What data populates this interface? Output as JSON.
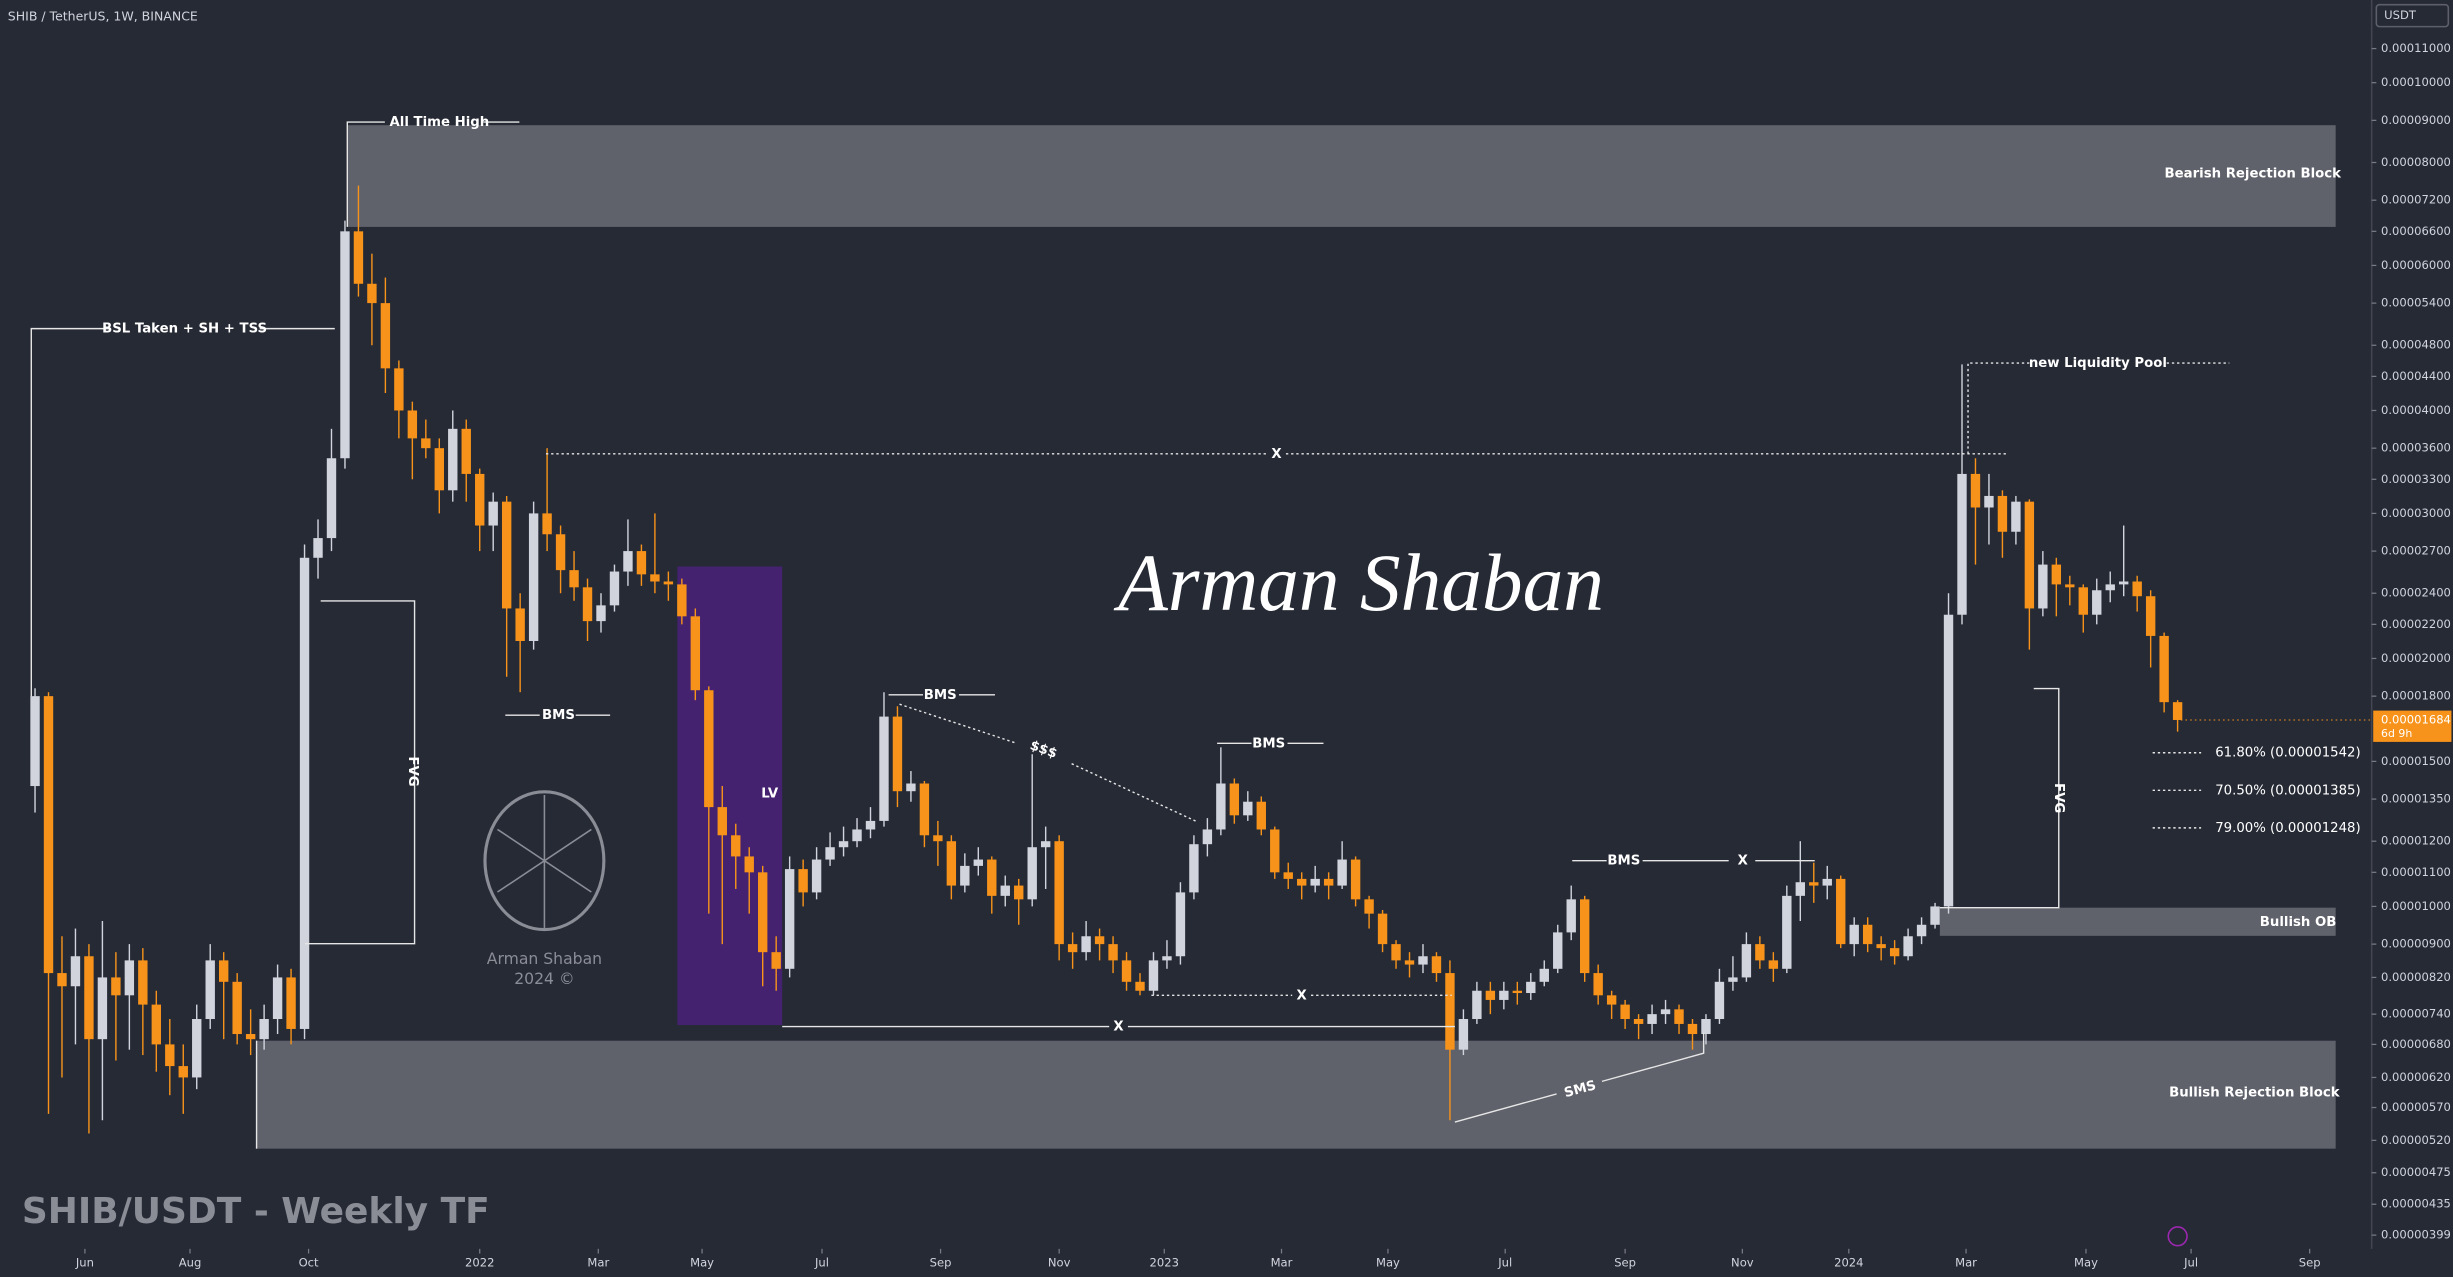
{
  "chart_data": {
    "type": "candlestick",
    "title": "SHIB / TetherUS, 1W, BINANCE",
    "subtitle": "SHIB/USDT - Weekly TF",
    "signature": "Arman Shaban",
    "logo_text": [
      "Arman Shaban",
      "2024 ©"
    ],
    "currency": "USDT",
    "log_scale": true,
    "up_color": "#d1d4dc",
    "down_color": "#f7931a",
    "last_price": {
      "value": 1.684e-05,
      "label": "0.00001684"
    },
    "countdown": "6d 9h",
    "annotations": {
      "ath": "All Time High",
      "bearish_block": "Bearish Rejection Block",
      "bsl": "BSL Taken + SH + TSS",
      "fvg": [
        "FVG",
        "FVG"
      ],
      "bms": [
        "BMS",
        "BMS",
        "BMS",
        "BMS"
      ],
      "x": [
        "X",
        "X",
        "X",
        "X"
      ],
      "dollars": "$$$",
      "lv": "LV",
      "sms": "SMS",
      "liquidity": "new Liquidity Pool",
      "bullish_ob": "Bullish OB",
      "bullish_block": "Bullish Rejection Block",
      "fib": [
        "61.80% (0.00001542)",
        "70.50% (0.00001385)",
        "79.00% (0.00001248)"
      ]
    },
    "xlim": [
      -2.6,
      173.4
    ],
    "xticks": [
      {
        "value": 3.7,
        "label": "Jun"
      },
      {
        "value": 11.5,
        "label": "Aug"
      },
      {
        "value": 20.3,
        "label": "Oct"
      },
      {
        "value": 33,
        "label": "2022"
      },
      {
        "value": 41.8,
        "label": "Mar"
      },
      {
        "value": 49.5,
        "label": "May"
      },
      {
        "value": 58.4,
        "label": "Jul"
      },
      {
        "value": 67.2,
        "label": "Sep"
      },
      {
        "value": 76,
        "label": "Nov"
      },
      {
        "value": 83.8,
        "label": "2023"
      },
      {
        "value": 92.5,
        "label": "Mar"
      },
      {
        "value": 100.4,
        "label": "May"
      },
      {
        "value": 109.1,
        "label": "Jul"
      },
      {
        "value": 118,
        "label": "Sep"
      },
      {
        "value": 126.7,
        "label": "Nov"
      },
      {
        "value": 134.6,
        "label": "2024"
      },
      {
        "value": 143.3,
        "label": "Mar"
      },
      {
        "value": 152.2,
        "label": "May"
      },
      {
        "value": 160,
        "label": "Jul"
      },
      {
        "value": 168.8,
        "label": "Sep"
      }
    ],
    "ylim": [
      3.84e-06,
      0.000126
    ],
    "yticks": [
      {
        "value": 0.00011,
        "label": "0.00011000"
      },
      {
        "value": 0.0001,
        "label": "0.00010000"
      },
      {
        "value": 9e-05,
        "label": "0.00009000"
      },
      {
        "value": 8e-05,
        "label": "0.00008000"
      },
      {
        "value": 7.2e-05,
        "label": "0.00007200"
      },
      {
        "value": 6.6e-05,
        "label": "0.00006600"
      },
      {
        "value": 6e-05,
        "label": "0.00006000"
      },
      {
        "value": 5.4e-05,
        "label": "0.00005400"
      },
      {
        "value": 4.8e-05,
        "label": "0.00004800"
      },
      {
        "value": 4.4e-05,
        "label": "0.00004400"
      },
      {
        "value": 4e-05,
        "label": "0.00004000"
      },
      {
        "value": 3.6e-05,
        "label": "0.00003600"
      },
      {
        "value": 3.3e-05,
        "label": "0.00003300"
      },
      {
        "value": 3e-05,
        "label": "0.00003000"
      },
      {
        "value": 2.7e-05,
        "label": "0.00002700"
      },
      {
        "value": 2.4e-05,
        "label": "0.00002400"
      },
      {
        "value": 2.2e-05,
        "label": "0.00002200"
      },
      {
        "value": 2e-05,
        "label": "0.00002000"
      },
      {
        "value": 1.8e-05,
        "label": "0.00001800"
      },
      {
        "value": 1.5e-05,
        "label": "0.00001500"
      },
      {
        "value": 1.35e-05,
        "label": "0.00001350"
      },
      {
        "value": 1.2e-05,
        "label": "0.00001200"
      },
      {
        "value": 1.1e-05,
        "label": "0.00001100"
      },
      {
        "value": 1e-05,
        "label": "0.00001000"
      },
      {
        "value": 9e-06,
        "label": "0.00000900"
      },
      {
        "value": 8.2e-06,
        "label": "0.00000820"
      },
      {
        "value": 7.4e-06,
        "label": "0.00000740"
      },
      {
        "value": 6.8e-06,
        "label": "0.00000680"
      },
      {
        "value": 6.2e-06,
        "label": "0.00000620"
      },
      {
        "value": 5.7e-06,
        "label": "0.00000570"
      },
      {
        "value": 5.2e-06,
        "label": "0.00000520"
      },
      {
        "value": 4.75e-06,
        "label": "0.00000475"
      },
      {
        "value": 4.35e-06,
        "label": "0.00000435"
      },
      {
        "value": 3.99e-06,
        "label": "0.00000399"
      }
    ],
    "open": [
      1.4e-05,
      1.8e-05,
      8.3e-06,
      8e-06,
      8.7e-06,
      6.9e-06,
      8.2e-06,
      7.8e-06,
      8.6e-06,
      7.6e-06,
      6.8e-06,
      6.4e-06,
      6.2e-06,
      7.3e-06,
      8.6e-06,
      8.1e-06,
      7e-06,
      6.9e-06,
      7.3e-06,
      8.2e-06,
      7.1e-06,
      2.65e-05,
      2.8e-05,
      3.5e-05,
      6.6e-05,
      5.7e-05,
      5.4e-05,
      4.5e-05,
      4e-05,
      3.7e-05,
      3.6e-05,
      3.2e-05,
      3.8e-05,
      3.35e-05,
      2.9e-05,
      3.1e-05,
      2.3e-05,
      2.1e-05,
      3e-05,
      2.83e-05,
      2.56e-05,
      2.44e-05,
      2.22e-05,
      2.32e-05,
      2.55e-05,
      2.7e-05,
      2.53e-05,
      2.48e-05,
      2.46e-05,
      2.25e-05,
      1.83e-05,
      1.32e-05,
      1.22e-05,
      1.15e-05,
      1.1e-05,
      8.8e-06,
      8.4e-06,
      1.11e-05,
      1.04e-05,
      1.14e-05,
      1.18e-05,
      1.2e-05,
      1.24e-05,
      1.27e-05,
      1.7e-05,
      1.38e-05,
      1.41e-05,
      1.22e-05,
      1.2e-05,
      1.06e-05,
      1.12e-05,
      1.14e-05,
      1.03e-05,
      1.06e-05,
      1.02e-05,
      1.18e-05,
      1.2e-05,
      9e-06,
      8.8e-06,
      9.2e-06,
      9e-06,
      8.6e-06,
      8.1e-06,
      7.9e-06,
      8.6e-06,
      8.7e-06,
      1.04e-05,
      1.19e-05,
      1.24e-05,
      1.41e-05,
      1.29e-05,
      1.34e-05,
      1.24e-05,
      1.1e-05,
      1.08e-05,
      1.06e-05,
      1.08e-05,
      1.06e-05,
      1.14e-05,
      1.02e-05,
      9.8e-06,
      9e-06,
      8.6e-06,
      8.5e-06,
      8.7e-06,
      8.3e-06,
      6.7e-06,
      7.3e-06,
      7.9e-06,
      7.7e-06,
      7.9e-06,
      7.85e-06,
      8.1e-06,
      8.4e-06,
      9.3e-06,
      1.02e-05,
      8.3e-06,
      7.8e-06,
      7.6e-06,
      7.3e-06,
      7.2e-06,
      7.4e-06,
      7.5e-06,
      7.2e-06,
      7e-06,
      7.3e-06,
      8.1e-06,
      8.2e-06,
      9e-06,
      8.6e-06,
      8.4e-06,
      1.03e-05,
      1.07e-05,
      1.06e-05,
      1.08e-05,
      9e-06,
      9.5e-06,
      9e-06,
      8.9e-06,
      8.7e-06,
      9.2e-06,
      9.5e-06,
      1e-05,
      2.26e-05,
      3.35e-05,
      3.05e-05,
      3.15e-05,
      2.85e-05,
      3.1e-05,
      2.3e-05,
      2.6e-05,
      2.46e-05,
      2.44e-05,
      2.26e-05,
      2.42e-05,
      2.46e-05,
      2.48e-05,
      2.38e-05,
      2.13e-05,
      1.77e-05
    ],
    "high": [
      1.84e-05,
      1.82e-05,
      9.2e-06,
      9.4e-06,
      9e-06,
      9.6e-06,
      8.8e-06,
      9e-06,
      8.9e-06,
      7.9e-06,
      7.3e-06,
      6.8e-06,
      7.6e-06,
      9e-06,
      8.8e-06,
      8.3e-06,
      7.5e-06,
      7.6e-06,
      8.5e-06,
      8.4e-06,
      2.75e-05,
      2.95e-05,
      3.8e-05,
      6.8e-05,
      7.5e-05,
      6.2e-05,
      5.8e-05,
      4.6e-05,
      4.1e-05,
      3.9e-05,
      3.7e-05,
      4e-05,
      3.9e-05,
      3.4e-05,
      3.18e-05,
      3.15e-05,
      2.4e-05,
      3.1e-05,
      3.6e-05,
      2.9e-05,
      2.7e-05,
      2.5e-05,
      2.4e-05,
      2.6e-05,
      2.95e-05,
      2.75e-05,
      3e-05,
      2.55e-05,
      2.5e-05,
      2.3e-05,
      1.85e-05,
      1.4e-05,
      1.26e-05,
      1.18e-05,
      1.12e-05,
      9.2e-06,
      1.15e-05,
      1.14e-05,
      1.18e-05,
      1.23e-05,
      1.25e-05,
      1.28e-05,
      1.32e-05,
      1.82e-05,
      1.75e-05,
      1.46e-05,
      1.42e-05,
      1.27e-05,
      1.22e-05,
      1.16e-05,
      1.18e-05,
      1.15e-05,
      1.09e-05,
      1.08e-05,
      1.53e-05,
      1.25e-05,
      1.22e-05,
      9.3e-06,
      9.6e-06,
      9.4e-06,
      9.2e-06,
      8.8e-06,
      8.3e-06,
      8.8e-06,
      9.1e-06,
      1.07e-05,
      1.22e-05,
      1.28e-05,
      1.56e-05,
      1.43e-05,
      1.38e-05,
      1.36e-05,
      1.25e-05,
      1.13e-05,
      1.1e-05,
      1.12e-05,
      1.1e-05,
      1.2e-05,
      1.15e-05,
      1.03e-05,
      9.9e-06,
      9.1e-06,
      8.8e-06,
      9e-06,
      8.8e-06,
      8.6e-06,
      7.5e-06,
      8.1e-06,
      8.1e-06,
      8.1e-06,
      8.1e-06,
      8.3e-06,
      8.6e-06,
      9.5e-06,
      1.06e-05,
      1.03e-05,
      8.5e-06,
      7.9e-06,
      7.7e-06,
      7.4e-06,
      7.6e-06,
      7.7e-06,
      7.6e-06,
      7.3e-06,
      7.4e-06,
      8.4e-06,
      8.7e-06,
      9.3e-06,
      9.2e-06,
      8.8e-06,
      1.06e-05,
      1.2e-05,
      1.13e-05,
      1.12e-05,
      1.09e-05,
      9.7e-06,
      9.7e-06,
      9.2e-06,
      9.1e-06,
      9.4e-06,
      9.7e-06,
      1.01e-05,
      2.4e-05,
      4.55e-05,
      3.5e-05,
      3.35e-05,
      3.2e-05,
      3.15e-05,
      3.12e-05,
      2.7e-05,
      2.65e-05,
      2.52e-05,
      2.46e-05,
      2.5e-05,
      2.55e-05,
      2.9e-05,
      2.52e-05,
      2.42e-05,
      2.15e-05,
      1.78e-05
    ],
    "low": [
      1.3e-05,
      5.6e-06,
      6.2e-06,
      6.8e-06,
      5.3e-06,
      5.5e-06,
      6.5e-06,
      6.7e-06,
      6.6e-06,
      6.3e-06,
      5.9e-06,
      5.6e-06,
      6e-06,
      7.1e-06,
      6.9e-06,
      6.8e-06,
      6.6e-06,
      6.7e-06,
      7e-06,
      6.8e-06,
      6.9e-06,
      2.5e-05,
      2.7e-05,
      3.4e-05,
      5.5e-05,
      4.8e-05,
      4.2e-05,
      3.7e-05,
      3.3e-05,
      3.5e-05,
      3e-05,
      3.1e-05,
      3.1e-05,
      2.7e-05,
      2.7e-05,
      1.9e-05,
      1.82e-05,
      2.05e-05,
      2.7e-05,
      2.4e-05,
      2.35e-05,
      2.1e-05,
      2.15e-05,
      2.28e-05,
      2.45e-05,
      2.45e-05,
      2.4e-05,
      2.35e-05,
      2.2e-05,
      1.78e-05,
      9.8e-06,
      9e-06,
      1.05e-05,
      9.8e-06,
      8e-06,
      7.9e-06,
      8.2e-06,
      1e-05,
      1.02e-05,
      1.12e-05,
      1.15e-05,
      1.18e-05,
      1.21e-05,
      1.25e-05,
      1.32e-05,
      1.34e-05,
      1.18e-05,
      1.12e-05,
      1.02e-05,
      1.04e-05,
      1.09e-05,
      9.8e-06,
      1e-05,
      9.5e-06,
      1e-05,
      1.05e-05,
      8.6e-06,
      8.4e-06,
      8.6e-06,
      8.6e-06,
      8.3e-06,
      7.9e-06,
      7.8e-06,
      7.8e-06,
      8.4e-06,
      8.5e-06,
      1.02e-05,
      1.15e-05,
      1.22e-05,
      1.26e-05,
      1.27e-05,
      1.22e-05,
      1.08e-05,
      1.05e-05,
      1.02e-05,
      1.04e-05,
      1.02e-05,
      1.05e-05,
      1e-05,
      9.4e-06,
      8.8e-06,
      8.4e-06,
      8.2e-06,
      8.3e-06,
      8.1e-06,
      5.5e-06,
      6.6e-06,
      7.2e-06,
      7.4e-06,
      7.5e-06,
      7.6e-06,
      7.7e-06,
      8e-06,
      8.3e-06,
      9.1e-06,
      8.1e-06,
      7.6e-06,
      7.3e-06,
      7.1e-06,
      6.9e-06,
      7e-06,
      7.2e-06,
      7e-06,
      6.7e-06,
      6.8e-06,
      7.2e-06,
      7.9e-06,
      8.1e-06,
      8.4e-06,
      8.1e-06,
      8.3e-06,
      9.6e-06,
      1.01e-05,
      1.02e-05,
      8.9e-06,
      8.7e-06,
      8.8e-06,
      8.6e-06,
      8.5e-06,
      8.6e-06,
      9e-06,
      9.4e-06,
      9.8e-06,
      2.2e-05,
      2.6e-05,
      2.75e-05,
      2.65e-05,
      2.75e-05,
      2.05e-05,
      2.25e-05,
      2.25e-05,
      2.32e-05,
      2.15e-05,
      2.2e-05,
      2.34e-05,
      2.38e-05,
      2.28e-05,
      1.95e-05,
      1.72e-05,
      1.63e-05
    ],
    "close": [
      1.8e-05,
      8.3e-06,
      8e-06,
      8.7e-06,
      6.9e-06,
      8.2e-06,
      7.8e-06,
      8.6e-06,
      7.6e-06,
      6.8e-06,
      6.4e-06,
      6.2e-06,
      7.3e-06,
      8.6e-06,
      8.1e-06,
      7e-06,
      6.9e-06,
      7.3e-06,
      8.2e-06,
      7.1e-06,
      2.65e-05,
      2.8e-05,
      3.5e-05,
      6.6e-05,
      5.7e-05,
      5.4e-05,
      4.5e-05,
      4e-05,
      3.7e-05,
      3.6e-05,
      3.2e-05,
      3.8e-05,
      3.35e-05,
      2.9e-05,
      3.1e-05,
      2.3e-05,
      2.1e-05,
      3e-05,
      2.83e-05,
      2.56e-05,
      2.44e-05,
      2.22e-05,
      2.32e-05,
      2.55e-05,
      2.7e-05,
      2.53e-05,
      2.48e-05,
      2.46e-05,
      2.25e-05,
      1.83e-05,
      1.32e-05,
      1.22e-05,
      1.15e-05,
      1.1e-05,
      8.8e-06,
      8.4e-06,
      1.11e-05,
      1.04e-05,
      1.14e-05,
      1.18e-05,
      1.2e-05,
      1.24e-05,
      1.27e-05,
      1.7e-05,
      1.38e-05,
      1.41e-05,
      1.22e-05,
      1.2e-05,
      1.06e-05,
      1.12e-05,
      1.14e-05,
      1.03e-05,
      1.06e-05,
      1.02e-05,
      1.18e-05,
      1.2e-05,
      9e-06,
      8.8e-06,
      9.2e-06,
      9e-06,
      8.6e-06,
      8.1e-06,
      7.9e-06,
      8.6e-06,
      8.7e-06,
      1.04e-05,
      1.19e-05,
      1.24e-05,
      1.41e-05,
      1.29e-05,
      1.34e-05,
      1.24e-05,
      1.1e-05,
      1.08e-05,
      1.06e-05,
      1.08e-05,
      1.06e-05,
      1.14e-05,
      1.02e-05,
      9.8e-06,
      9e-06,
      8.6e-06,
      8.5e-06,
      8.7e-06,
      8.3e-06,
      6.7e-06,
      7.3e-06,
      7.9e-06,
      7.7e-06,
      7.9e-06,
      7.85e-06,
      8.1e-06,
      8.4e-06,
      9.3e-06,
      1.02e-05,
      8.3e-06,
      7.8e-06,
      7.6e-06,
      7.3e-06,
      7.2e-06,
      7.4e-06,
      7.5e-06,
      7.2e-06,
      7e-06,
      7.3e-06,
      8.1e-06,
      8.2e-06,
      9e-06,
      8.6e-06,
      8.4e-06,
      1.03e-05,
      1.07e-05,
      1.06e-05,
      1.08e-05,
      9e-06,
      9.5e-06,
      9e-06,
      8.9e-06,
      8.7e-06,
      9.2e-06,
      9.5e-06,
      1e-05,
      2.26e-05,
      3.35e-05,
      3.05e-05,
      3.15e-05,
      2.85e-05,
      3.1e-05,
      2.3e-05,
      2.6e-05,
      2.46e-05,
      2.44e-05,
      2.26e-05,
      2.42e-05,
      2.46e-05,
      2.48e-05,
      2.38e-05,
      2.13e-05,
      1.77e-05,
      1.684e-05
    ]
  }
}
